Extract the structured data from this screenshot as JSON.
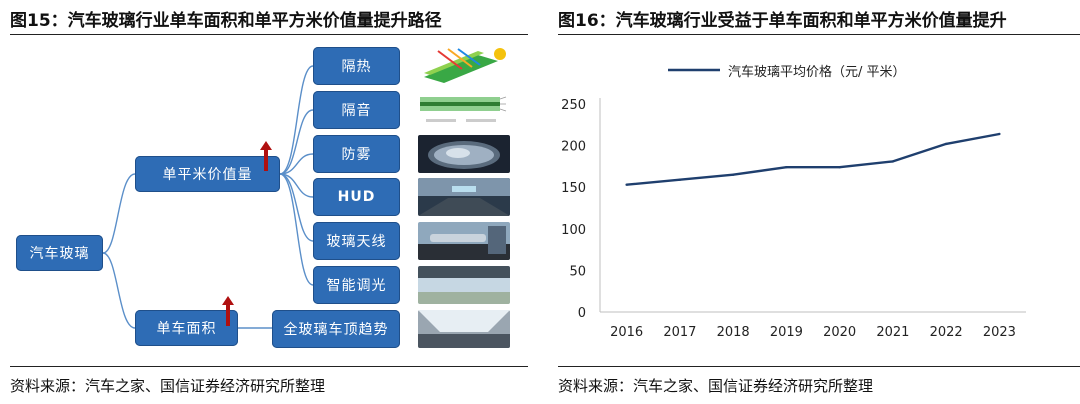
{
  "left_figure": {
    "title": "图15：汽车玻璃行业单车面积和单平方米价值量提升路径",
    "source": "资料来源：汽车之家、国信证券经济研究所整理",
    "root": "汽车玻璃",
    "branches": [
      {
        "label": "单平米价值量",
        "children": [
          "隔热",
          "隔音",
          "防雾",
          "HUD",
          "玻璃天线",
          "智能调光"
        ]
      },
      {
        "label": "单车面积",
        "children": [
          "全玻璃车顶趋势"
        ]
      }
    ],
    "arrow_color": "#b01010",
    "node_color": "#2e6cb5",
    "line_color": "#5b8fc9"
  },
  "right_figure": {
    "title": "图16：汽车玻璃行业受益于单车面积和单平方米价值量提升",
    "source": "资料来源：汽车之家、国信证券经济研究所整理"
  },
  "chart_data": {
    "type": "line",
    "title": "",
    "xlabel": "",
    "ylabel": "",
    "categories": [
      "2016",
      "2017",
      "2018",
      "2019",
      "2020",
      "2021",
      "2022",
      "2023"
    ],
    "series": [
      {
        "name": "汽车玻璃平均价格（元/ 平米）",
        "values": [
          153,
          159,
          165,
          174,
          174,
          181,
          202,
          214
        ],
        "color": "#1f3f6e"
      }
    ],
    "ylim": [
      0,
      250
    ],
    "yticks": [
      0,
      50,
      100,
      150,
      200,
      250
    ],
    "grid": false,
    "legend_position": "top-left"
  }
}
